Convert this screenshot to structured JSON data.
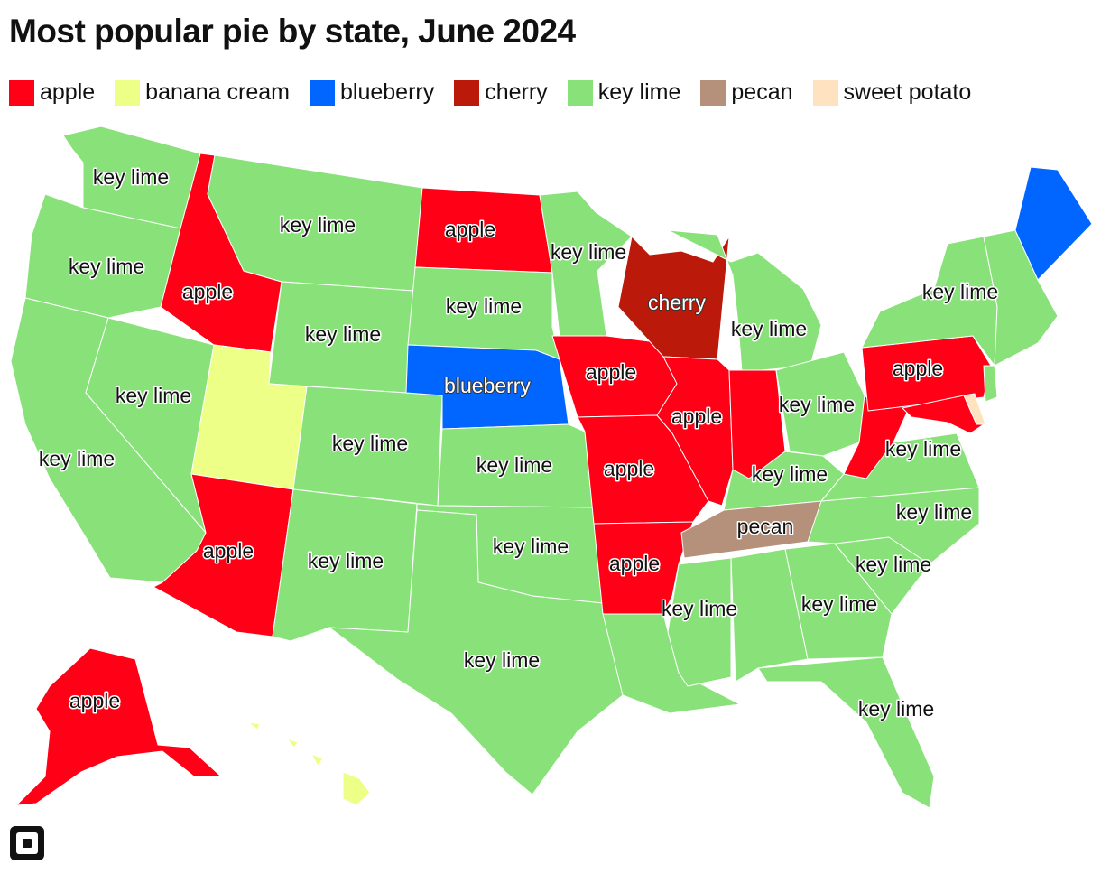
{
  "title": "Most popular pie by state, June 2024",
  "legend": [
    {
      "label": "apple",
      "color": "#ff0016"
    },
    {
      "label": "banana cream",
      "color": "#eeff88"
    },
    {
      "label": "blueberry",
      "color": "#0066ff"
    },
    {
      "label": "cherry",
      "color": "#bb1a0a"
    },
    {
      "label": "key lime",
      "color": "#88e279"
    },
    {
      "label": "pecan",
      "color": "#b5917c"
    },
    {
      "label": "sweet potato",
      "color": "#ffe2c0"
    }
  ],
  "states": [
    {
      "name": "WA",
      "pie": "key lime",
      "label": "key lime"
    },
    {
      "name": "OR",
      "pie": "key lime",
      "label": "key lime"
    },
    {
      "name": "CA",
      "pie": "key lime",
      "label": "key lime"
    },
    {
      "name": "NV",
      "pie": "key lime",
      "label": "key lime"
    },
    {
      "name": "ID",
      "pie": "apple",
      "label": "apple"
    },
    {
      "name": "MT",
      "pie": "key lime",
      "label": "key lime"
    },
    {
      "name": "WY",
      "pie": "key lime",
      "label": "key lime"
    },
    {
      "name": "UT",
      "pie": "banana cream",
      "label": ""
    },
    {
      "name": "AZ",
      "pie": "apple",
      "label": "apple"
    },
    {
      "name": "CO",
      "pie": "key lime",
      "label": "key lime"
    },
    {
      "name": "NM",
      "pie": "key lime",
      "label": "key lime"
    },
    {
      "name": "ND",
      "pie": "apple",
      "label": "apple"
    },
    {
      "name": "SD",
      "pie": "key lime",
      "label": "key lime"
    },
    {
      "name": "NE",
      "pie": "blueberry",
      "label": "blueberry"
    },
    {
      "name": "KS",
      "pie": "key lime",
      "label": "key lime"
    },
    {
      "name": "OK",
      "pie": "key lime",
      "label": "key lime"
    },
    {
      "name": "TX",
      "pie": "key lime",
      "label": "key lime"
    },
    {
      "name": "MN",
      "pie": "key lime",
      "label": "key lime"
    },
    {
      "name": "IA",
      "pie": "apple",
      "label": "apple"
    },
    {
      "name": "MO",
      "pie": "apple",
      "label": "apple"
    },
    {
      "name": "AR",
      "pie": "apple",
      "label": "apple"
    },
    {
      "name": "LA",
      "pie": "key lime",
      "label": ""
    },
    {
      "name": "WI",
      "pie": "cherry",
      "label": "cherry"
    },
    {
      "name": "IL",
      "pie": "apple",
      "label": "apple"
    },
    {
      "name": "MI",
      "pie": "key lime",
      "label": "key lime"
    },
    {
      "name": "IN",
      "pie": "apple",
      "label": ""
    },
    {
      "name": "OH",
      "pie": "key lime",
      "label": "key lime"
    },
    {
      "name": "KY",
      "pie": "key lime",
      "label": "key lime"
    },
    {
      "name": "TN",
      "pie": "pecan",
      "label": "pecan"
    },
    {
      "name": "MS",
      "pie": "key lime",
      "label": "key lime"
    },
    {
      "name": "AL",
      "pie": "key lime",
      "label": ""
    },
    {
      "name": "GA",
      "pie": "key lime",
      "label": "key lime"
    },
    {
      "name": "FL",
      "pie": "key lime",
      "label": "key lime"
    },
    {
      "name": "SC",
      "pie": "key lime",
      "label": "key lime"
    },
    {
      "name": "NC",
      "pie": "key lime",
      "label": "key lime"
    },
    {
      "name": "VA",
      "pie": "key lime",
      "label": "key lime"
    },
    {
      "name": "WV",
      "pie": "apple",
      "label": ""
    },
    {
      "name": "PA",
      "pie": "apple",
      "label": "apple"
    },
    {
      "name": "NY",
      "pie": "key lime",
      "label": "key lime"
    },
    {
      "name": "MD",
      "pie": "apple",
      "label": ""
    },
    {
      "name": "DE",
      "pie": "sweet potato",
      "label": ""
    },
    {
      "name": "NJ",
      "pie": "key lime",
      "label": ""
    },
    {
      "name": "New England",
      "pie": "key lime",
      "label": ""
    },
    {
      "name": "ME",
      "pie": "blueberry",
      "label": ""
    },
    {
      "name": "AK",
      "pie": "apple",
      "label": "apple"
    },
    {
      "name": "HI",
      "pie": "banana cream",
      "label": ""
    }
  ],
  "logo_icon": "square-logo-icon"
}
